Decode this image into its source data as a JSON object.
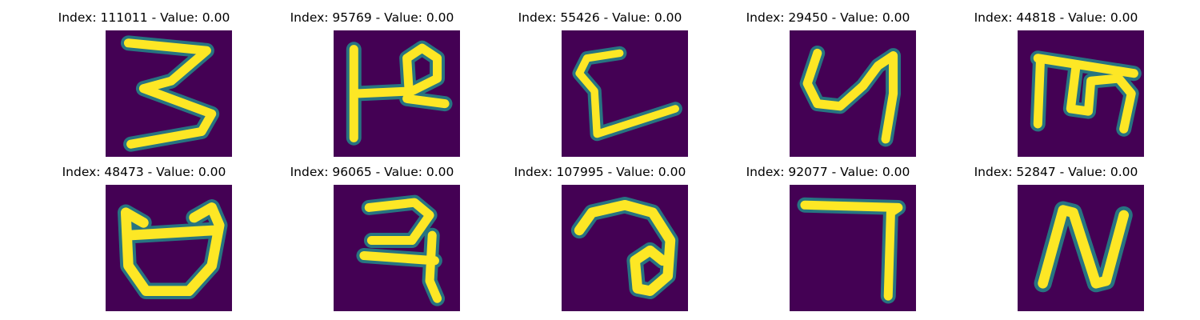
{
  "colors": {
    "background": "#440154",
    "stroke": "#fde725",
    "stroke_edge": "#21918c"
  },
  "tiles": [
    {
      "title": "Index: 111011 - Value: 0.00",
      "glyph": "3"
    },
    {
      "title": "Index: 95769 - Value: 0.00",
      "glyph": "kha-like"
    },
    {
      "title": "Index: 55426 - Value: 0.00",
      "glyph": "L-like"
    },
    {
      "title": "Index: 29450 - Value: 0.00",
      "glyph": "y-like"
    },
    {
      "title": "Index: 44818 - Value: 0.00",
      "glyph": "m-like"
    },
    {
      "title": "Index: 48473 - Value: 0.00",
      "glyph": "cup-like"
    },
    {
      "title": "Index: 96065 - Value: 0.00",
      "glyph": "ra-like"
    },
    {
      "title": "Index: 107995 - Value: 0.00",
      "glyph": "loop-like"
    },
    {
      "title": "Index: 92077 - Value: 0.00",
      "glyph": "7-like"
    },
    {
      "title": "Index: 52847 - Value: 0.00",
      "glyph": "N-like"
    }
  ]
}
